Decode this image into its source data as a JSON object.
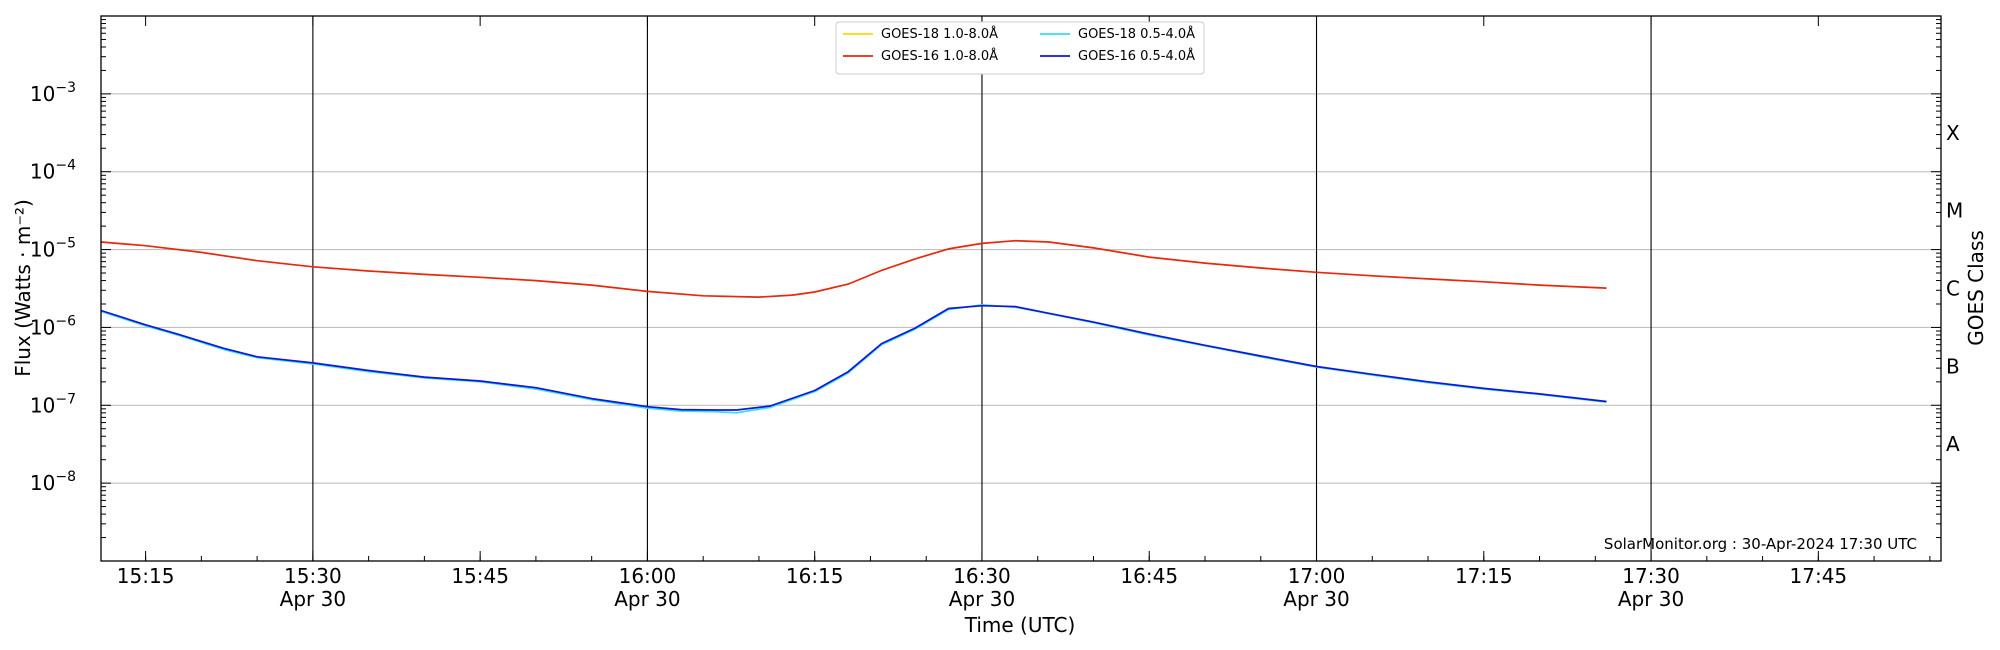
{
  "chart_data": {
    "type": "line",
    "title": "",
    "xlabel": "Time (UTC)",
    "ylabel": "Flux (Watts · m⁻²)",
    "right_label": "GOES Class",
    "credit": "SolarMonitor.org : 30-Apr-2024 17:30 UTC",
    "x_range": [
      "15:11",
      "17:56"
    ],
    "ylim": [
      1e-09,
      0.01
    ],
    "y_scale": "log",
    "grid": "horizontal",
    "legend_position": "top-center",
    "x_ticks": [
      {
        "time": "15:15",
        "label": "15:15",
        "sub": ""
      },
      {
        "time": "15:30",
        "label": "15:30",
        "sub": "Apr 30"
      },
      {
        "time": "15:45",
        "label": "15:45",
        "sub": ""
      },
      {
        "time": "16:00",
        "label": "16:00",
        "sub": "Apr 30"
      },
      {
        "time": "16:15",
        "label": "16:15",
        "sub": ""
      },
      {
        "time": "16:30",
        "label": "16:30",
        "sub": "Apr 30"
      },
      {
        "time": "16:45",
        "label": "16:45",
        "sub": ""
      },
      {
        "time": "17:00",
        "label": "17:00",
        "sub": "Apr 30"
      },
      {
        "time": "17:15",
        "label": "17:15",
        "sub": ""
      },
      {
        "time": "17:30",
        "label": "17:30",
        "sub": "Apr 30"
      },
      {
        "time": "17:45",
        "label": "17:45",
        "sub": ""
      }
    ],
    "vertical_lines": [
      "15:30",
      "16:00",
      "16:30",
      "17:00",
      "17:30"
    ],
    "y_ticks": [
      {
        "exp": -3,
        "label": "10",
        "sup": "−3"
      },
      {
        "exp": -4,
        "label": "10",
        "sup": "−4"
      },
      {
        "exp": -5,
        "label": "10",
        "sup": "−5"
      },
      {
        "exp": -6,
        "label": "10",
        "sup": "−6"
      },
      {
        "exp": -7,
        "label": "10",
        "sup": "−7"
      },
      {
        "exp": -8,
        "label": "10",
        "sup": "−8"
      }
    ],
    "goes_classes": [
      {
        "label": "X",
        "exp": -3.5
      },
      {
        "label": "M",
        "exp": -4.5
      },
      {
        "label": "C",
        "exp": -5.5
      },
      {
        "label": "B",
        "exp": -6.5
      },
      {
        "label": "A",
        "exp": -7.5
      }
    ],
    "series": [
      {
        "name": "GOES-18 1.0-8.0Å",
        "color": "#ffd700",
        "points": []
      },
      {
        "name": "GOES-16 1.0-8.0Å",
        "color": "#e8280c",
        "points": [
          [
            "15:11",
            1.25e-05
          ],
          [
            "15:15",
            1.12e-05
          ],
          [
            "15:20",
            9.2e-06
          ],
          [
            "15:25",
            7.2e-06
          ],
          [
            "15:30",
            6e-06
          ],
          [
            "15:35",
            5.3e-06
          ],
          [
            "15:40",
            4.8e-06
          ],
          [
            "15:45",
            4.4e-06
          ],
          [
            "15:50",
            4e-06
          ],
          [
            "15:55",
            3.5e-06
          ],
          [
            "16:00",
            2.9e-06
          ],
          [
            "16:05",
            2.55e-06
          ],
          [
            "16:10",
            2.45e-06
          ],
          [
            "16:13",
            2.6e-06
          ],
          [
            "16:15",
            2.85e-06
          ],
          [
            "16:18",
            3.6e-06
          ],
          [
            "16:21",
            5.4e-06
          ],
          [
            "16:24",
            7.6e-06
          ],
          [
            "16:27",
            1.02e-05
          ],
          [
            "16:30",
            1.2e-05
          ],
          [
            "16:33",
            1.3e-05
          ],
          [
            "16:36",
            1.25e-05
          ],
          [
            "16:40",
            1.05e-05
          ],
          [
            "16:45",
            8e-06
          ],
          [
            "16:50",
            6.7e-06
          ],
          [
            "16:55",
            5.8e-06
          ],
          [
            "17:00",
            5.1e-06
          ],
          [
            "17:05",
            4.6e-06
          ],
          [
            "17:10",
            4.2e-06
          ],
          [
            "17:15",
            3.85e-06
          ],
          [
            "17:20",
            3.5e-06
          ],
          [
            "17:26",
            3.2e-06
          ]
        ]
      },
      {
        "name": "GOES-18 0.5-4.0Å",
        "color": "#33e0f0",
        "points": [
          [
            "15:11",
            1.6e-06
          ],
          [
            "15:15",
            1.05e-06
          ],
          [
            "15:18",
            7.9e-07
          ],
          [
            "15:22",
            5.2e-07
          ],
          [
            "15:25",
            4.1e-07
          ],
          [
            "15:30",
            3.4e-07
          ],
          [
            "15:35",
            2.7e-07
          ],
          [
            "15:40",
            2.25e-07
          ],
          [
            "15:45",
            2e-07
          ],
          [
            "15:50",
            1.62e-07
          ],
          [
            "15:55",
            1.18e-07
          ],
          [
            "16:00",
            9.2e-08
          ],
          [
            "16:03",
            8.4e-08
          ],
          [
            "16:06",
            8.3e-08
          ],
          [
            "16:08",
            8e-08
          ],
          [
            "16:11",
            9.4e-08
          ],
          [
            "16:15",
            1.5e-07
          ],
          [
            "16:18",
            2.6e-07
          ],
          [
            "16:21",
            6e-07
          ],
          [
            "16:24",
            9.5e-07
          ],
          [
            "16:27",
            1.7e-06
          ],
          [
            "16:30",
            1.95e-06
          ],
          [
            "16:33",
            1.82e-06
          ],
          [
            "16:36",
            1.5e-06
          ],
          [
            "16:40",
            1.15e-06
          ],
          [
            "16:45",
            8e-07
          ],
          [
            "16:50",
            5.8e-07
          ],
          [
            "16:55",
            4.2e-07
          ],
          [
            "17:00",
            3.1e-07
          ],
          [
            "17:05",
            2.45e-07
          ],
          [
            "17:10",
            1.95e-07
          ],
          [
            "17:15",
            1.62e-07
          ],
          [
            "17:20",
            1.38e-07
          ],
          [
            "17:26",
            1.1e-07
          ]
        ]
      },
      {
        "name": "GOES-16 0.5-4.0Å",
        "color": "#1515d8",
        "points": [
          [
            "15:11",
            1.65e-06
          ],
          [
            "15:15",
            1.08e-06
          ],
          [
            "15:18",
            8.1e-07
          ],
          [
            "15:22",
            5.4e-07
          ],
          [
            "15:25",
            4.2e-07
          ],
          [
            "15:30",
            3.5e-07
          ],
          [
            "15:35",
            2.8e-07
          ],
          [
            "15:40",
            2.3e-07
          ],
          [
            "15:45",
            2.05e-07
          ],
          [
            "15:50",
            1.68e-07
          ],
          [
            "15:55",
            1.22e-07
          ],
          [
            "16:00",
            9.6e-08
          ],
          [
            "16:03",
            8.8e-08
          ],
          [
            "16:06",
            8.7e-08
          ],
          [
            "16:08",
            8.7e-08
          ],
          [
            "16:11",
            9.8e-08
          ],
          [
            "16:15",
            1.55e-07
          ],
          [
            "16:18",
            2.7e-07
          ],
          [
            "16:21",
            6.2e-07
          ],
          [
            "16:24",
            9.8e-07
          ],
          [
            "16:27",
            1.75e-06
          ],
          [
            "16:30",
            1.9e-06
          ],
          [
            "16:33",
            1.85e-06
          ],
          [
            "16:36",
            1.52e-06
          ],
          [
            "16:40",
            1.17e-06
          ],
          [
            "16:45",
            8.2e-07
          ],
          [
            "16:50",
            5.9e-07
          ],
          [
            "16:55",
            4.3e-07
          ],
          [
            "17:00",
            3.15e-07
          ],
          [
            "17:05",
            2.5e-07
          ],
          [
            "17:10",
            2e-07
          ],
          [
            "17:15",
            1.65e-07
          ],
          [
            "17:20",
            1.4e-07
          ],
          [
            "17:26",
            1.12e-07
          ]
        ]
      }
    ]
  }
}
